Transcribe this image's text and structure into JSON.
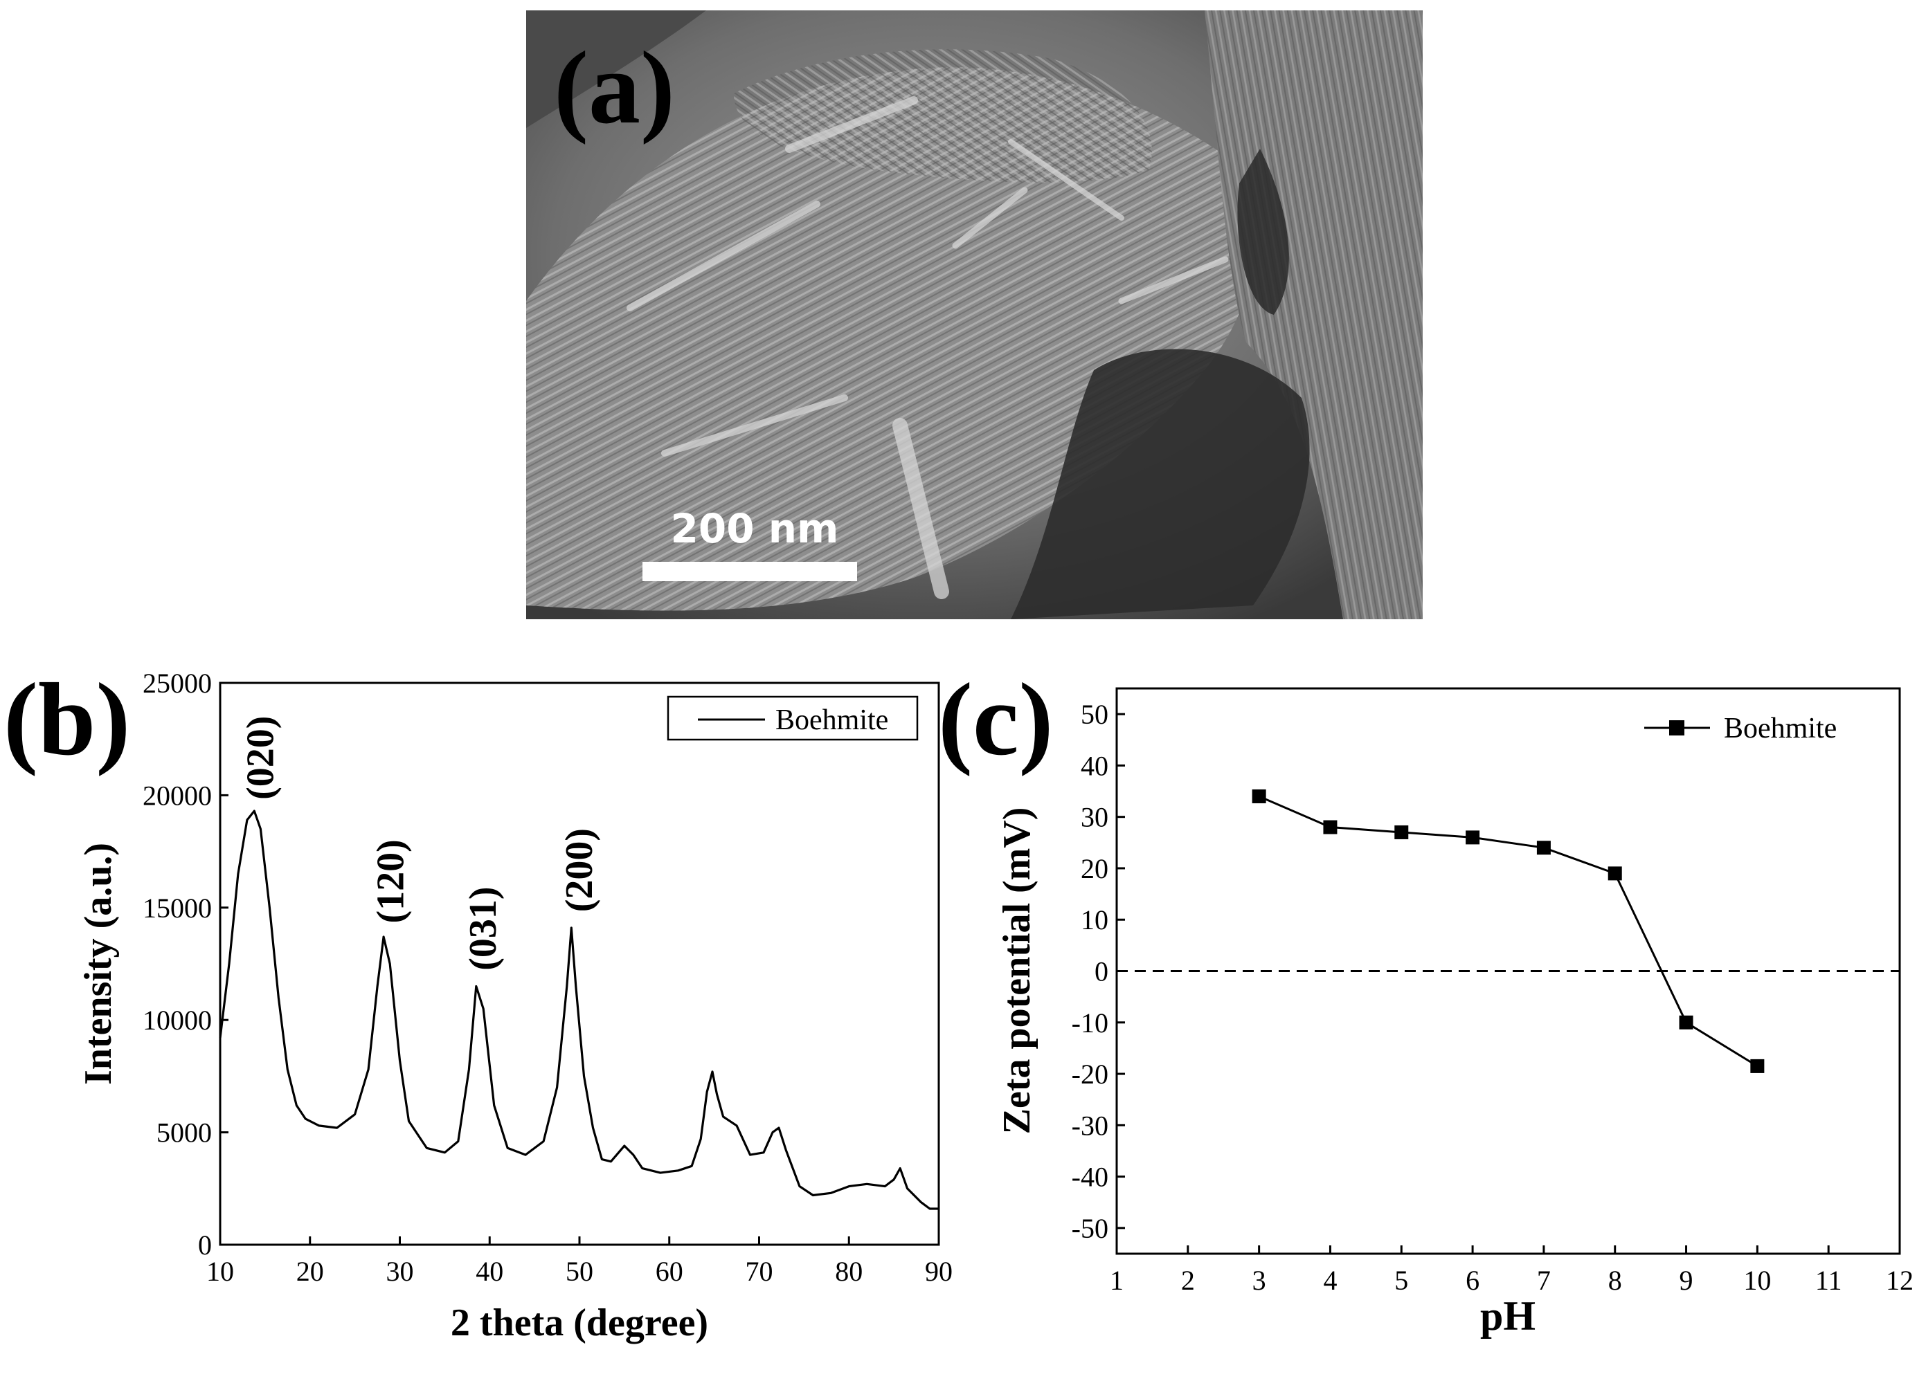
{
  "panels": {
    "a": {
      "label": "(a)",
      "scale_bar": "200 nm"
    },
    "b": {
      "label": "(b)"
    },
    "c": {
      "label": "(c)"
    }
  },
  "chart_data": [
    {
      "id": "b",
      "type": "line",
      "title": "",
      "xlabel": "2 theta (degree)",
      "ylabel": "Intensity (a.u.)",
      "xlim": [
        10,
        90
      ],
      "ylim": [
        0,
        25000
      ],
      "xticks": [
        10,
        20,
        30,
        40,
        50,
        60,
        70,
        80,
        90
      ],
      "yticks": [
        0,
        5000,
        10000,
        15000,
        20000,
        25000
      ],
      "legend": {
        "entries": [
          "Boehmite"
        ],
        "position": "top-right"
      },
      "series": [
        {
          "name": "Boehmite",
          "x": [
            10,
            11,
            12,
            13,
            13.8,
            14.5,
            15.5,
            16.5,
            17.5,
            18.5,
            19.5,
            21,
            23,
            25,
            26.5,
            27.5,
            28.2,
            28.9,
            30,
            31,
            33,
            35,
            36.5,
            37.7,
            38.5,
            39.3,
            40.5,
            42,
            44,
            46,
            47.5,
            48.6,
            49.1,
            49.6,
            50.5,
            51.5,
            52.5,
            53.5,
            55,
            56,
            57,
            59,
            61,
            62.5,
            63.5,
            64.2,
            64.8,
            65.3,
            66,
            67.5,
            69,
            70.5,
            71.5,
            72.2,
            73,
            74.5,
            76,
            78,
            80,
            82,
            84,
            85,
            85.7,
            86.5,
            88,
            89,
            90
          ],
          "y": [
            9200,
            12500,
            16500,
            18900,
            19300,
            18500,
            15000,
            11000,
            7800,
            6200,
            5600,
            5300,
            5200,
            5800,
            7800,
            11500,
            13700,
            12500,
            8200,
            5500,
            4300,
            4100,
            4600,
            7800,
            11500,
            10500,
            6200,
            4300,
            4000,
            4600,
            7000,
            11500,
            14100,
            11500,
            7500,
            5200,
            3800,
            3700,
            4400,
            4000,
            3400,
            3200,
            3300,
            3500,
            4700,
            6800,
            7700,
            6700,
            5700,
            5300,
            4000,
            4100,
            5000,
            5200,
            4200,
            2600,
            2200,
            2300,
            2600,
            2700,
            2600,
            2900,
            3400,
            2500,
            1900,
            1600,
            1600
          ]
        }
      ],
      "annotations": [
        {
          "text": "(020)",
          "x": 14.5,
          "y": 19800
        },
        {
          "text": "(120)",
          "x": 29,
          "y": 14300
        },
        {
          "text": "(031)",
          "x": 39.3,
          "y": 12200
        },
        {
          "text": "(200)",
          "x": 50,
          "y": 14800
        }
      ]
    },
    {
      "id": "c",
      "type": "line",
      "title": "",
      "xlabel": "pH",
      "ylabel": "Zeta potential (mV)",
      "xlim": [
        1,
        12
      ],
      "ylim": [
        -55,
        55
      ],
      "xticks": [
        1,
        2,
        3,
        4,
        5,
        6,
        7,
        8,
        9,
        10,
        11,
        12
      ],
      "yticks": [
        50,
        40,
        30,
        20,
        10,
        0,
        -10,
        -20,
        -30,
        -40,
        -50
      ],
      "legend": {
        "entries": [
          "Boehmite"
        ],
        "position": "top-right"
      },
      "reference_line": {
        "y": 0,
        "style": "dashed"
      },
      "series": [
        {
          "name": "Boehmite",
          "marker": "square",
          "x": [
            3,
            4,
            5,
            6,
            7,
            8,
            9,
            10
          ],
          "y": [
            34,
            28,
            27,
            26,
            24,
            19,
            -10,
            -18.5
          ]
        }
      ]
    }
  ]
}
